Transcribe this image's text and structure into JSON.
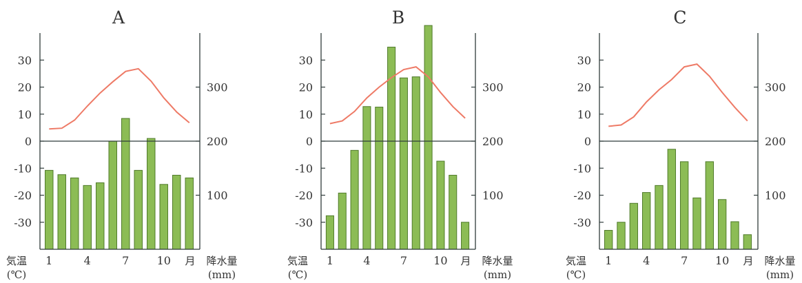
{
  "chart_data": [
    {
      "type": "bar",
      "title": "A",
      "months": [
        1,
        2,
        3,
        4,
        5,
        6,
        7,
        8,
        9,
        10,
        11,
        12
      ],
      "x_tick_labels": [
        "1",
        "4",
        "7",
        "10"
      ],
      "x_unit": "月",
      "y_left_label": "気温",
      "y_left_unit": "(℃)",
      "y_right_label": "降水量",
      "y_right_unit": "(mm)",
      "temp_ylim": [
        -40,
        40
      ],
      "temp_ticks": [
        "30",
        "20",
        "10",
        "0",
        "-10",
        "-20",
        "-30"
      ],
      "precip_ylim": [
        0,
        400
      ],
      "precip_ticks": [
        "300",
        "200",
        "100"
      ],
      "precipitation_mm": [
        146,
        138,
        132,
        118,
        123,
        200,
        242,
        146,
        205,
        120,
        137,
        132
      ],
      "temperature_c": [
        4.5,
        4.8,
        7.8,
        13.0,
        17.8,
        22.0,
        25.8,
        26.8,
        22.2,
        16.0,
        10.8,
        6.8
      ]
    },
    {
      "type": "bar",
      "title": "B",
      "months": [
        1,
        2,
        3,
        4,
        5,
        6,
        7,
        8,
        9,
        10,
        11,
        12
      ],
      "x_tick_labels": [
        "1",
        "4",
        "7",
        "10"
      ],
      "x_unit": "月",
      "y_left_label": "気温",
      "y_left_unit": "(℃)",
      "y_right_label": "降水量",
      "y_right_unit": "(mm)",
      "temp_ylim": [
        -40,
        40
      ],
      "temp_ticks": [
        "30",
        "20",
        "10",
        "0",
        "-10",
        "-20",
        "-30"
      ],
      "precip_ylim": [
        0,
        400
      ],
      "precip_ticks": [
        "300",
        "200",
        "100"
      ],
      "precipitation_mm": [
        62,
        104,
        183,
        264,
        263,
        374,
        317,
        319,
        414,
        163,
        137,
        50
      ],
      "temperature_c": [
        6.5,
        7.5,
        11.0,
        16.0,
        20.0,
        23.5,
        26.5,
        27.5,
        23.8,
        18.0,
        12.8,
        8.5
      ]
    },
    {
      "type": "bar",
      "title": "C",
      "months": [
        1,
        2,
        3,
        4,
        5,
        6,
        7,
        8,
        9,
        10,
        11,
        12
      ],
      "x_tick_labels": [
        "1",
        "4",
        "7",
        "10"
      ],
      "x_unit": "月",
      "y_left_label": "気温",
      "y_left_unit": "(℃)",
      "y_right_label": "降水量",
      "y_right_unit": "(mm)",
      "temp_ylim": [
        -40,
        40
      ],
      "temp_ticks": [
        "30",
        "20",
        "10",
        "0",
        "-10",
        "-20",
        "-30"
      ],
      "precip_ylim": [
        0,
        400
      ],
      "precip_ticks": [
        "300",
        "200",
        "100"
      ],
      "precipitation_mm": [
        35,
        50,
        85,
        105,
        118,
        185,
        162,
        95,
        162,
        92,
        51,
        27
      ],
      "temperature_c": [
        5.5,
        6.0,
        9.0,
        14.5,
        19.0,
        22.8,
        27.5,
        28.5,
        24.0,
        18.0,
        12.5,
        7.5
      ]
    }
  ],
  "colors": {
    "bar_fill": "#8cbc55",
    "bar_stroke": "#4f7a2a",
    "temp_line": "#ee7a66",
    "axis": "#2f3b3a"
  }
}
